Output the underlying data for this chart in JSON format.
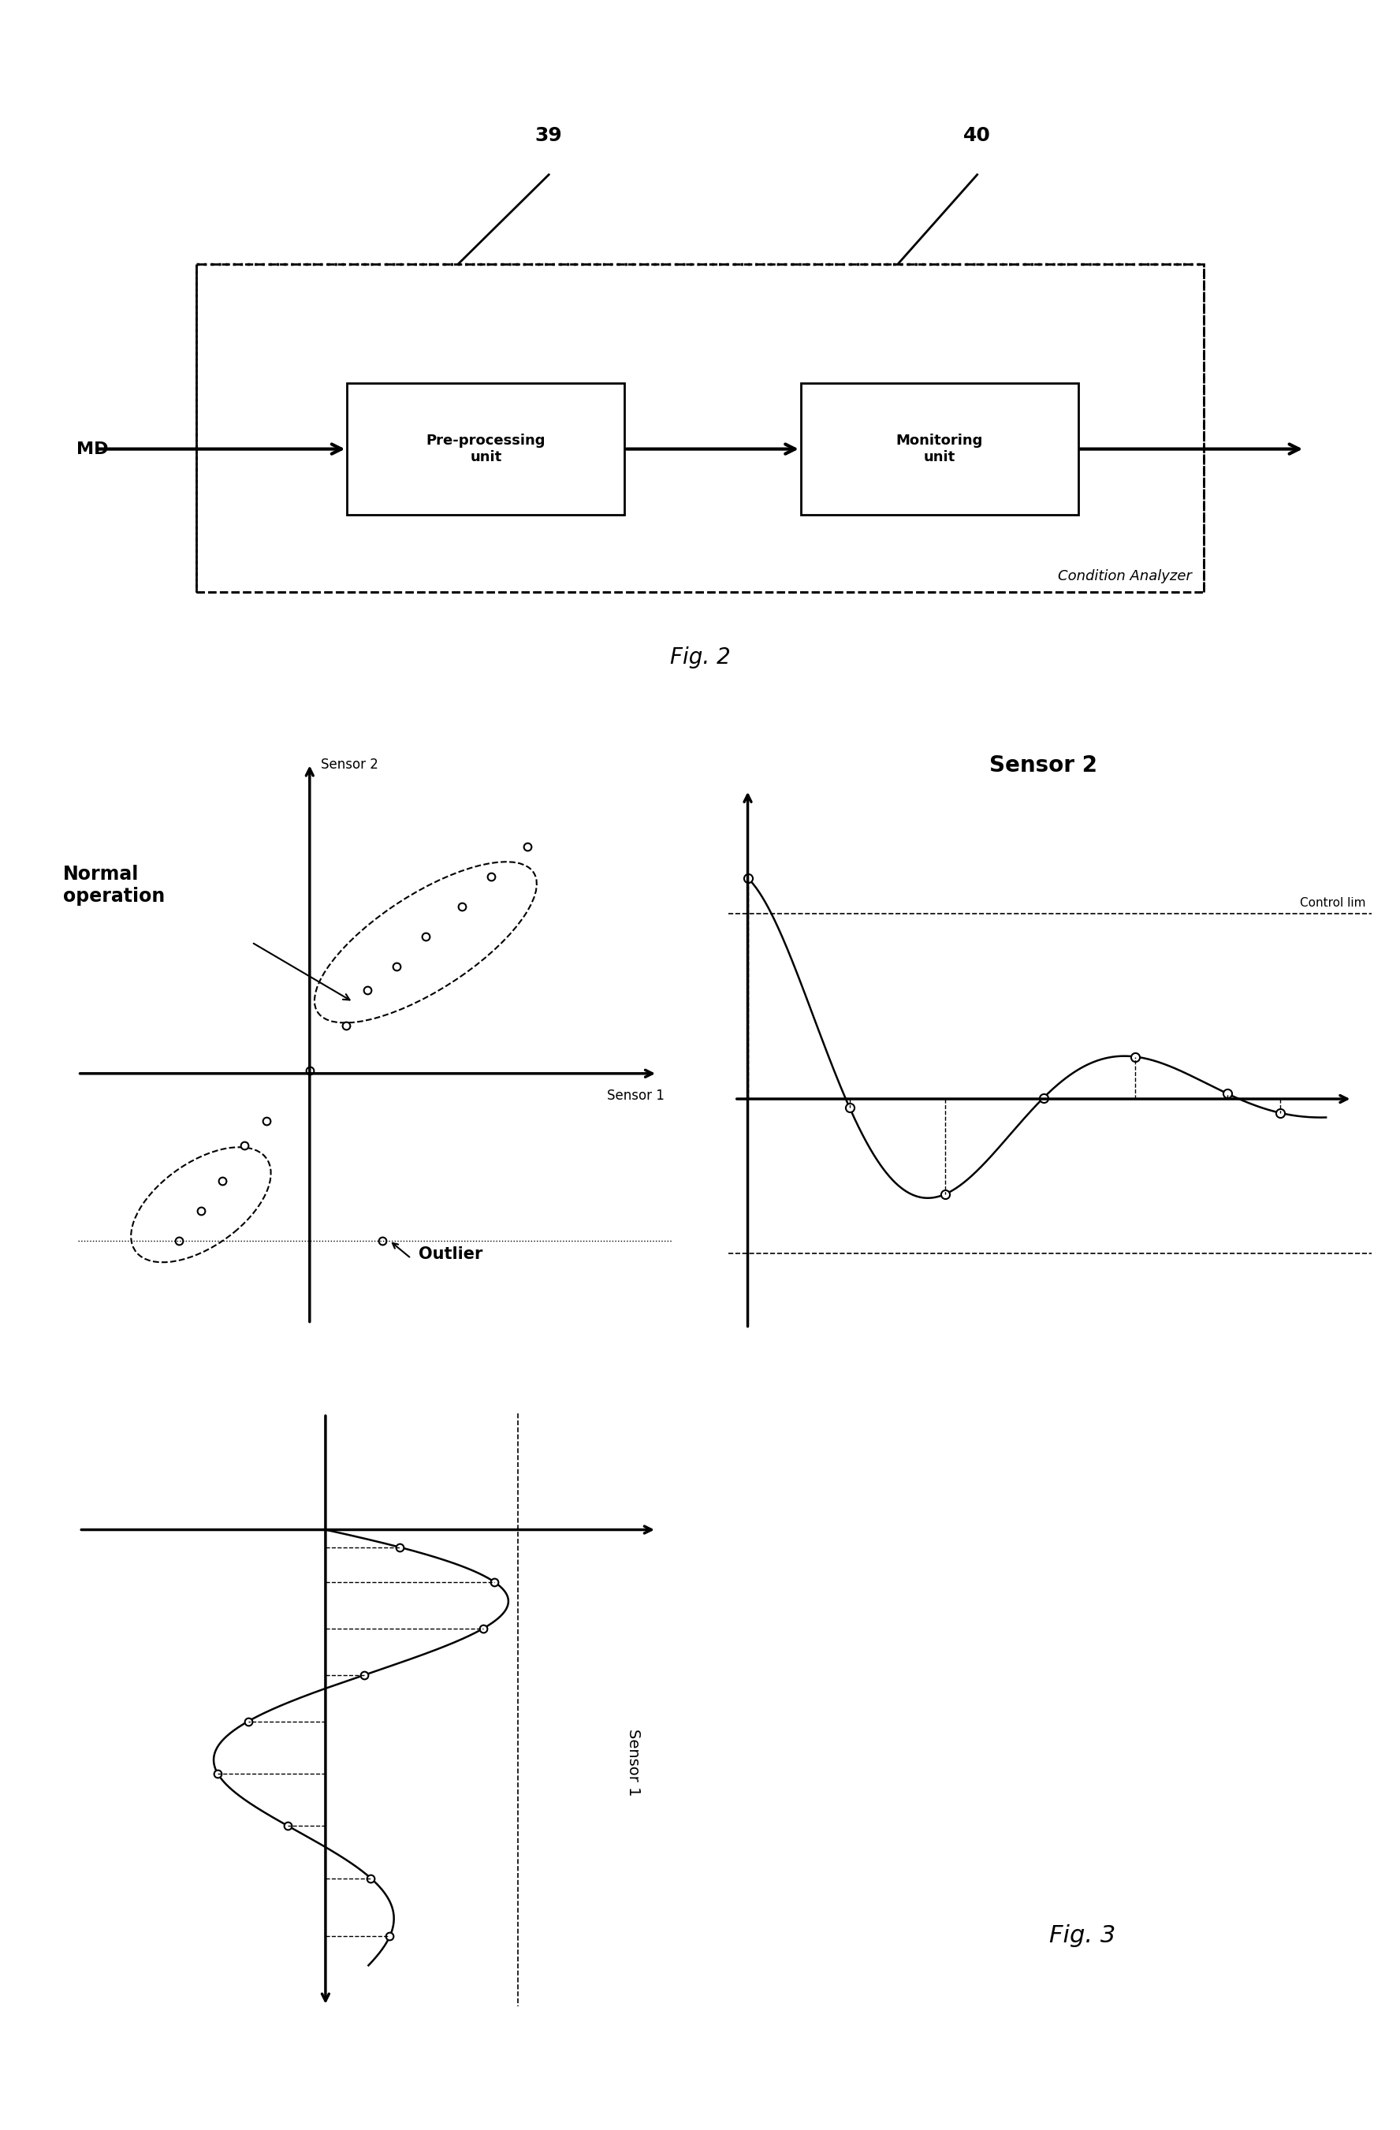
{
  "fig2": {
    "title": "Fig. 2",
    "label_md": "MD",
    "label_39": "39",
    "label_40": "40",
    "box1_text": "Pre-processing\nunit",
    "box2_text": "Monitoring\nunit",
    "outer_label": "Condition Analyzer"
  },
  "fig3": {
    "title": "Fig. 3",
    "scatter_ylabel": "Sensor 2",
    "scatter_xlabel": "Sensor 1",
    "normal_op_label": "Normal\noperation",
    "outlier_label": "Outlier",
    "sensor2_title": "Sensor 2",
    "control_lim_label": "Control lim",
    "sensor1_label": "Sensor 1"
  },
  "background_color": "#ffffff",
  "text_color": "#000000"
}
